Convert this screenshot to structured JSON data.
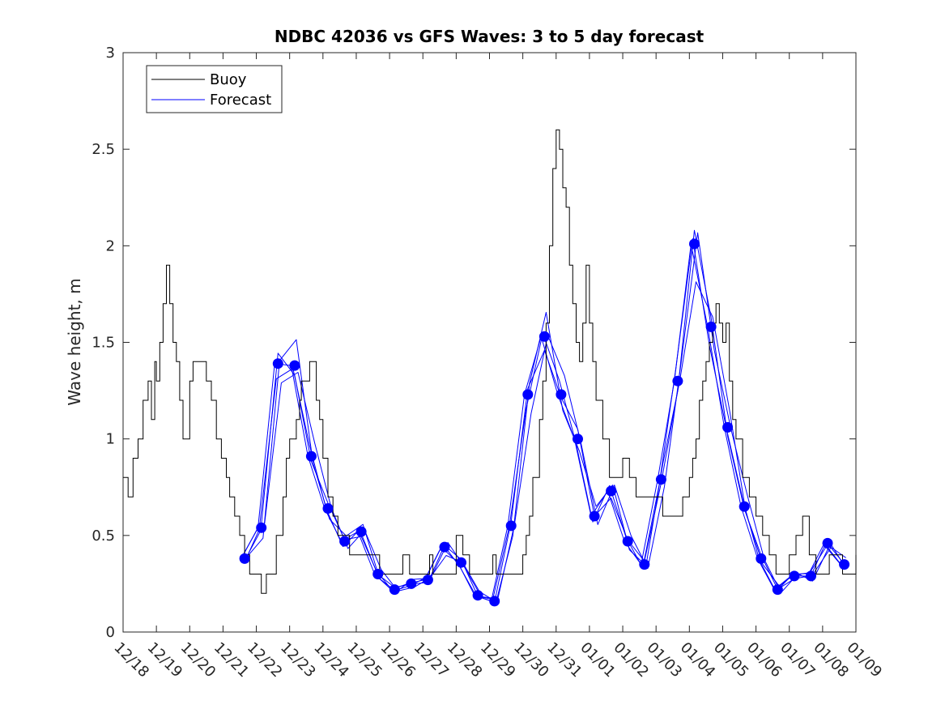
{
  "chart_data": {
    "type": "line",
    "title": "NDBC 42036 vs GFS Waves: 3 to 5 day forecast",
    "xlabel": "",
    "ylabel": "Wave height, m",
    "ylim": [
      0,
      3
    ],
    "yticks": [
      0,
      0.5,
      1,
      1.5,
      2,
      2.5,
      3
    ],
    "ytick_labels": [
      "0",
      "0.5",
      "1",
      "1.5",
      "2",
      "2.5",
      "3"
    ],
    "xlim_days": [
      0,
      22
    ],
    "xtick_labels": [
      "12/18",
      "12/19",
      "12/20",
      "12/21",
      "12/22",
      "12/23",
      "12/24",
      "12/25",
      "12/26",
      "12/27",
      "12/28",
      "12/29",
      "12/30",
      "12/31",
      "01/01",
      "01/02",
      "01/03",
      "01/04",
      "01/05",
      "01/06",
      "01/07",
      "01/08",
      "01/09"
    ],
    "legend": {
      "position": "top-left",
      "entries": [
        {
          "label": "Buoy",
          "color": "#000000"
        },
        {
          "label": "Forecast",
          "color": "#0000ff"
        }
      ]
    },
    "series": [
      {
        "name": "Buoy",
        "color": "#000000",
        "style": "step",
        "x": [
          0,
          0.15,
          0.3,
          0.45,
          0.6,
          0.75,
          0.85,
          0.95,
          1.0,
          1.1,
          1.2,
          1.3,
          1.4,
          1.5,
          1.6,
          1.7,
          1.8,
          1.9,
          2.0,
          2.1,
          2.3,
          2.5,
          2.65,
          2.8,
          2.95,
          3.1,
          3.2,
          3.35,
          3.5,
          3.65,
          3.8,
          4.0,
          4.15,
          4.3,
          4.6,
          4.8,
          4.9,
          5.0,
          5.2,
          5.3,
          5.35,
          5.4,
          5.6,
          5.8,
          5.9,
          6.0,
          6.15,
          6.3,
          6.45,
          6.6,
          6.8,
          7.0,
          7.2,
          7.5,
          7.7,
          8.0,
          8.2,
          8.4,
          8.6,
          8.8,
          9.0,
          9.2,
          9.3,
          9.5,
          9.7,
          10.0,
          10.2,
          10.4,
          10.6,
          10.8,
          11.0,
          11.1,
          11.2,
          11.4,
          11.6,
          11.8,
          12.0,
          12.1,
          12.2,
          12.3,
          12.5,
          12.6,
          12.7,
          12.8,
          12.9,
          13.0,
          13.1,
          13.2,
          13.3,
          13.4,
          13.5,
          13.6,
          13.7,
          13.8,
          13.9,
          14.0,
          14.1,
          14.2,
          14.4,
          14.6,
          14.8,
          15.0,
          15.2,
          15.4,
          15.6,
          15.8,
          16.0,
          16.2,
          16.4,
          16.6,
          16.8,
          17.0,
          17.1,
          17.2,
          17.3,
          17.4,
          17.5,
          17.6,
          17.7,
          17.8,
          17.9,
          18.0,
          18.1,
          18.2,
          18.3,
          18.4,
          18.6,
          18.8,
          19.0,
          19.2,
          19.4,
          19.6,
          19.8,
          20.0,
          20.2,
          20.4,
          20.6,
          20.8,
          21.0,
          21.2,
          21.4,
          21.6,
          21.8,
          22.0
        ],
        "values": [
          0.8,
          0.7,
          0.9,
          1.0,
          1.2,
          1.3,
          1.1,
          1.4,
          1.3,
          1.5,
          1.7,
          1.9,
          1.7,
          1.5,
          1.4,
          1.2,
          1.0,
          1.0,
          1.3,
          1.4,
          1.4,
          1.3,
          1.2,
          1.0,
          0.9,
          0.8,
          0.7,
          0.6,
          0.5,
          0.4,
          0.3,
          0.3,
          0.2,
          0.3,
          0.5,
          0.7,
          0.9,
          1.0,
          1.1,
          1.2,
          1.3,
          1.3,
          1.4,
          1.2,
          1.1,
          0.9,
          0.7,
          0.6,
          0.5,
          0.5,
          0.4,
          0.4,
          0.4,
          0.4,
          0.3,
          0.3,
          0.3,
          0.4,
          0.3,
          0.3,
          0.3,
          0.4,
          0.3,
          0.3,
          0.3,
          0.5,
          0.4,
          0.3,
          0.3,
          0.3,
          0.3,
          0.4,
          0.3,
          0.3,
          0.3,
          0.3,
          0.4,
          0.5,
          0.6,
          0.8,
          1.1,
          1.3,
          1.6,
          2.0,
          2.4,
          2.6,
          2.5,
          2.3,
          2.2,
          1.9,
          1.7,
          1.5,
          1.4,
          1.6,
          1.9,
          1.6,
          1.4,
          1.2,
          1.0,
          0.8,
          0.8,
          0.9,
          0.8,
          0.7,
          0.7,
          0.7,
          0.7,
          0.6,
          0.6,
          0.6,
          0.7,
          0.8,
          0.9,
          1.0,
          1.2,
          1.3,
          1.4,
          1.5,
          1.6,
          1.7,
          1.6,
          1.5,
          1.6,
          1.3,
          1.1,
          1.0,
          0.8,
          0.7,
          0.6,
          0.5,
          0.4,
          0.3,
          0.3,
          0.4,
          0.5,
          0.6,
          0.4,
          0.3,
          0.3,
          0.4,
          0.4,
          0.3,
          0.3,
          0.4
        ]
      },
      {
        "name": "Forecast",
        "color": "#0000ff",
        "style": "dots-and-lines",
        "x": [
          3.65,
          4.15,
          4.65,
          5.15,
          5.65,
          6.15,
          6.65,
          7.15,
          7.65,
          8.15,
          8.65,
          9.15,
          9.65,
          10.15,
          10.65,
          11.15,
          11.65,
          12.15,
          12.65,
          13.15,
          13.65,
          14.15,
          14.65,
          15.15,
          15.65,
          16.15,
          16.65,
          17.15,
          17.65,
          18.15,
          18.65,
          19.15,
          19.65,
          20.15,
          20.65,
          21.15,
          21.65
        ],
        "values": [
          0.38,
          0.54,
          1.39,
          1.38,
          0.91,
          0.64,
          0.47,
          0.52,
          0.3,
          0.22,
          0.25,
          0.27,
          0.44,
          0.36,
          0.19,
          0.16,
          0.55,
          1.23,
          1.53,
          1.23,
          1.0,
          0.6,
          0.73,
          0.47,
          0.35,
          0.79,
          1.3,
          2.01,
          1.58,
          1.06,
          0.65,
          0.38,
          0.22,
          0.29,
          0.29,
          0.46,
          0.35
        ]
      }
    ]
  }
}
